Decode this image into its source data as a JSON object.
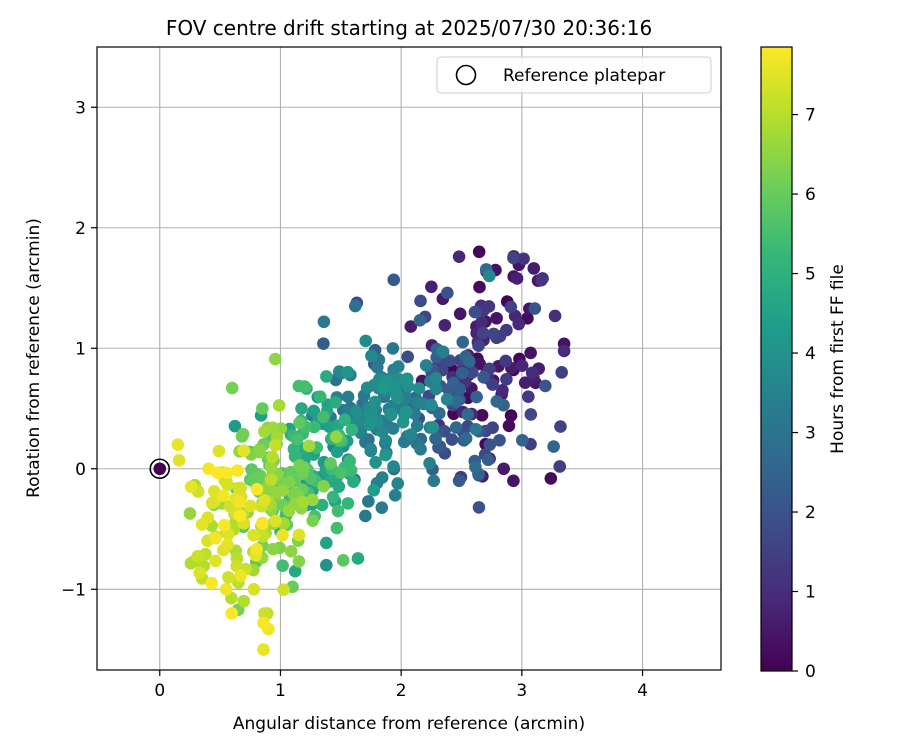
{
  "chart_data": {
    "type": "scatter",
    "title": "FOV centre drift starting at 2025/07/30 20:36:16",
    "xlabel": "Angular distance from reference (arcmin)",
    "ylabel": "Rotation from reference (arcmin)",
    "xlim": [
      -0.52,
      4.65
    ],
    "ylim": [
      -1.67,
      3.5
    ],
    "xticks": [
      0,
      1,
      2,
      3,
      4
    ],
    "yticks": [
      -1,
      0,
      1,
      2,
      3
    ],
    "xtick_labels": [
      "0",
      "1",
      "2",
      "3",
      "4"
    ],
    "ytick_labels": [
      "−1",
      "0",
      "1",
      "2",
      "3"
    ],
    "grid": true,
    "legend": {
      "position": "top-right",
      "entries": [
        "Reference platepar"
      ]
    },
    "colorbar": {
      "label": "Hours from first FF file",
      "colormap": "viridis",
      "range": [
        0,
        7.85
      ],
      "ticks": [
        0,
        1,
        2,
        3,
        4,
        5,
        6,
        7
      ],
      "tick_labels": [
        "0",
        "1",
        "2",
        "3",
        "4",
        "5",
        "6",
        "7"
      ]
    },
    "reference_point": {
      "x": 0,
      "y": 0,
      "label": "Reference platepar"
    },
    "viridis_stops": [
      "#440154",
      "#482878",
      "#3e4a89",
      "#31688e",
      "#26828e",
      "#1f9e89",
      "#35b779",
      "#6ece58",
      "#b5de2b",
      "#fde725"
    ],
    "clusters": [
      {
        "cx": 2.75,
        "cy": 0.95,
        "sx": 0.28,
        "sy": 0.42,
        "h0": 0.0,
        "h1": 1.6,
        "n": 95
      },
      {
        "cx": 2.4,
        "cy": 0.6,
        "sx": 0.3,
        "sy": 0.38,
        "h0": 1.6,
        "h1": 2.8,
        "n": 85
      },
      {
        "cx": 1.8,
        "cy": 0.45,
        "sx": 0.25,
        "sy": 0.32,
        "h0": 2.8,
        "h1": 4.2,
        "n": 120
      },
      {
        "cx": 1.25,
        "cy": 0.05,
        "sx": 0.22,
        "sy": 0.3,
        "h0": 4.2,
        "h1": 5.6,
        "n": 95
      },
      {
        "cx": 0.9,
        "cy": -0.1,
        "sx": 0.22,
        "sy": 0.32,
        "h0": 5.6,
        "h1": 6.8,
        "n": 95
      },
      {
        "cx": 0.6,
        "cy": -0.45,
        "sx": 0.2,
        "sy": 0.35,
        "h0": 6.8,
        "h1": 7.85,
        "n": 80
      }
    ],
    "extra_points": [
      {
        "x": 2.48,
        "y": 1.76,
        "h": 0.9
      },
      {
        "x": 2.93,
        "y": 1.75,
        "h": 1.6
      },
      {
        "x": 2.25,
        "y": 1.51,
        "h": 0.7
      },
      {
        "x": 2.73,
        "y": 1.6,
        "h": 3.6
      },
      {
        "x": 1.62,
        "y": 1.35,
        "h": 3.0
      },
      {
        "x": 1.36,
        "y": 1.22,
        "h": 3.2
      },
      {
        "x": 2.08,
        "y": 1.18,
        "h": 0.6
      },
      {
        "x": 3.33,
        "y": 0.8,
        "h": 1.5
      },
      {
        "x": 3.32,
        "y": 0.35,
        "h": 1.6
      },
      {
        "x": 3.24,
        "y": -0.08,
        "h": 0.2
      },
      {
        "x": 2.93,
        "y": -0.1,
        "h": 0.4
      },
      {
        "x": 2.48,
        "y": -0.1,
        "h": 2.2
      },
      {
        "x": 2.27,
        "y": -0.1,
        "h": 3.2
      },
      {
        "x": 1.95,
        "y": -0.22,
        "h": 3.4
      },
      {
        "x": 1.8,
        "y": -0.12,
        "h": 3.4
      },
      {
        "x": 1.38,
        "y": -0.8,
        "h": 4.0
      },
      {
        "x": 1.52,
        "y": -0.76,
        "h": 5.8
      },
      {
        "x": 1.1,
        "y": -0.98,
        "h": 6.0
      },
      {
        "x": 0.6,
        "y": 0.67,
        "h": 6.2
      },
      {
        "x": 0.85,
        "y": 0.5,
        "h": 6.0
      },
      {
        "x": 0.15,
        "y": 0.2,
        "h": 7.6
      },
      {
        "x": 0.16,
        "y": 0.07,
        "h": 7.5
      },
      {
        "x": 0.26,
        "y": -0.15,
        "h": 7.6
      },
      {
        "x": 0.65,
        "y": -1.17,
        "h": 6.2
      },
      {
        "x": 0.78,
        "y": -1.0,
        "h": 7.4
      },
      {
        "x": 0.86,
        "y": -1.28,
        "h": 7.8
      },
      {
        "x": 0.9,
        "y": -1.33,
        "h": 7.7
      },
      {
        "x": 0.86,
        "y": -1.5,
        "h": 7.6
      },
      {
        "x": 0.43,
        "y": -0.95,
        "h": 7.8
      },
      {
        "x": 0.55,
        "y": -1.0,
        "h": 7.7
      }
    ]
  }
}
